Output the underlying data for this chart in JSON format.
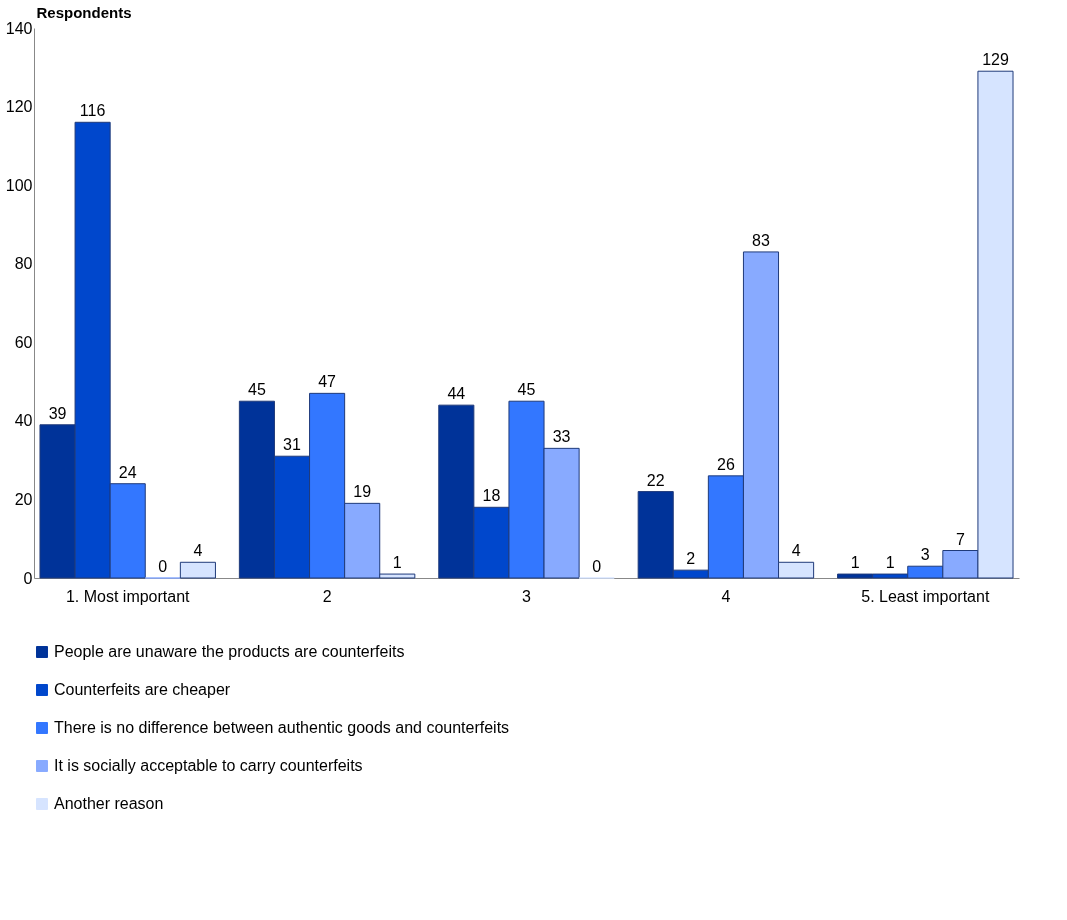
{
  "chart_data": {
    "type": "bar",
    "ylabel": "Respondents",
    "categories": [
      "1. Most important",
      "2",
      "3",
      "4",
      "5. Least important"
    ],
    "series": [
      {
        "name": "People are unaware the products are counterfeits",
        "color": "#003399",
        "values": [
          39,
          45,
          44,
          22,
          1
        ]
      },
      {
        "name": "Counterfeits are cheaper",
        "color": "#0047cc",
        "values": [
          116,
          31,
          18,
          2,
          1
        ]
      },
      {
        "name": "There is no difference between authentic goods and counterfeits",
        "color": "#3377ff",
        "values": [
          24,
          47,
          45,
          26,
          3
        ]
      },
      {
        "name": "It is socially acceptable to carry counterfeits",
        "color": "#88aaff",
        "values": [
          0,
          19,
          33,
          83,
          7
        ]
      },
      {
        "name": "Another reason",
        "color": "#d6e4ff",
        "values": [
          4,
          1,
          0,
          4,
          129
        ]
      }
    ],
    "ylim": [
      0,
      140
    ],
    "yticks": [
      0,
      20,
      40,
      60,
      80,
      100,
      120,
      140
    ],
    "grid": false,
    "legend": "bottom",
    "data_labels": true
  }
}
